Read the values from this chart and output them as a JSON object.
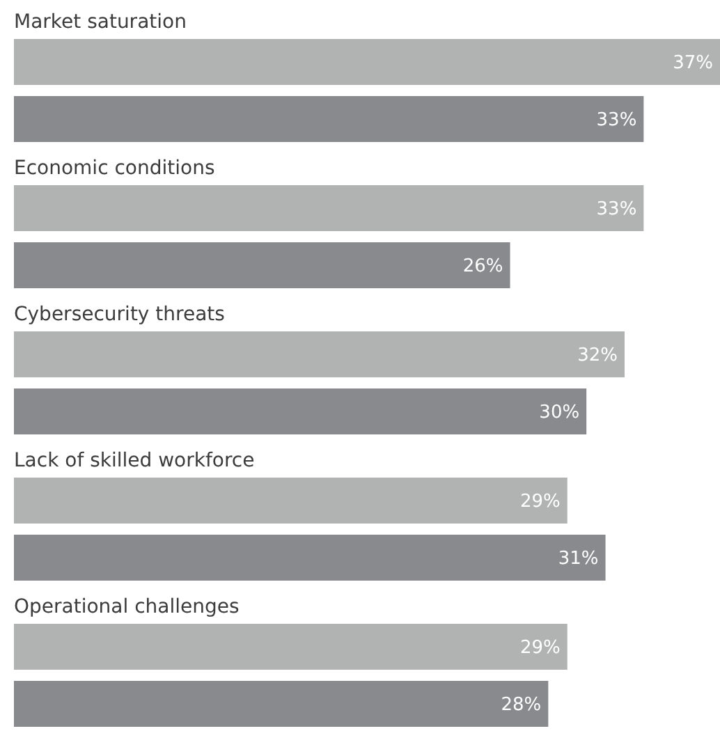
{
  "chart_data": {
    "type": "bar",
    "orientation": "horizontal",
    "categories": [
      "Market saturation",
      "Economic conditions",
      "Cybersecurity threats",
      "Lack of skilled workforce",
      "Operational challenges"
    ],
    "series": [
      {
        "color": "#b1b3b3",
        "values": [
          37,
          33,
          32,
          29,
          29
        ],
        "value_labels": [
          "37%",
          "33%",
          "32%",
          "29%",
          "29%"
        ]
      },
      {
        "color": "#898a8d",
        "values": [
          33,
          26,
          30,
          31,
          28
        ],
        "value_labels": [
          "33%",
          "26%",
          "30%",
          "31%",
          "28%"
        ]
      }
    ]
  }
}
